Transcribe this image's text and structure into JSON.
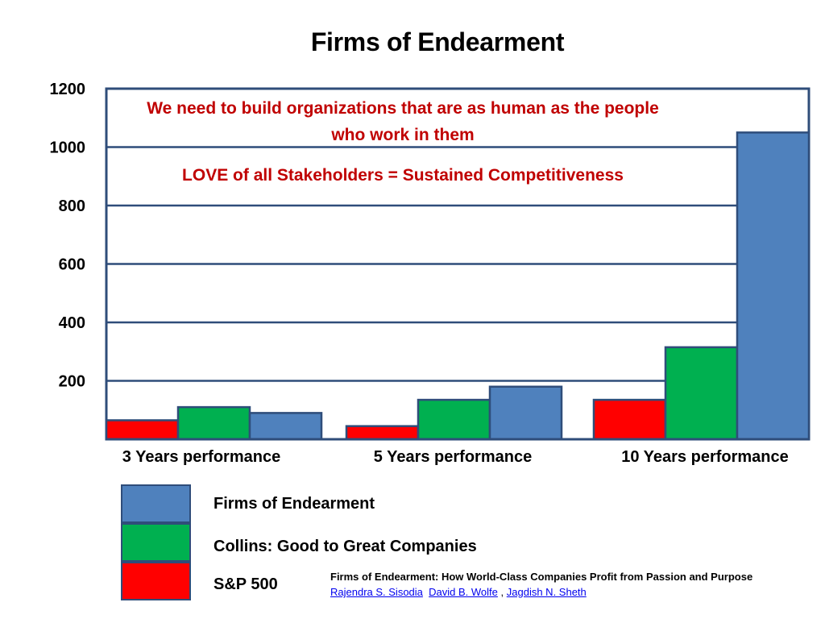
{
  "chart_data": {
    "type": "bar",
    "title": "Firms of Endearment",
    "categories": [
      "3 Years performance",
      "5 Years performance",
      "10 Years performance"
    ],
    "series": [
      {
        "name": "S&P 500",
        "color": "#ff0000",
        "values": [
          65,
          45,
          135
        ]
      },
      {
        "name": "Collins: Good to Great Companies",
        "color": "#00b050",
        "values": [
          110,
          135,
          315
        ]
      },
      {
        "name": "Firms of Endearment",
        "color": "#4f81bd",
        "values": [
          90,
          180,
          1050
        ]
      }
    ],
    "yticks": [
      1200,
      1000,
      800,
      600,
      400,
      200
    ],
    "ylim": [
      0,
      1200
    ],
    "grid": true,
    "legend_position": "bottom-left",
    "annotations": [
      "We need to build organizations that are as human as the people who work in them",
      "LOVE of all Stakeholders = Sustained Competitiveness"
    ]
  },
  "legend": {
    "items": [
      {
        "label": "Firms of Endearment",
        "color": "#4f81bd"
      },
      {
        "label": "Collins: Good to Great Companies",
        "color": "#00b050"
      },
      {
        "label": "S&P 500",
        "color": "#ff0000"
      }
    ]
  },
  "citation": {
    "book": "Firms of Endearment: How World-Class Companies Profit from Passion and Purpose",
    "authors": [
      "Rajendra S. Sisodia",
      "David B. Wolfe",
      "Jagdish N. Sheth"
    ],
    "separator": ","
  }
}
